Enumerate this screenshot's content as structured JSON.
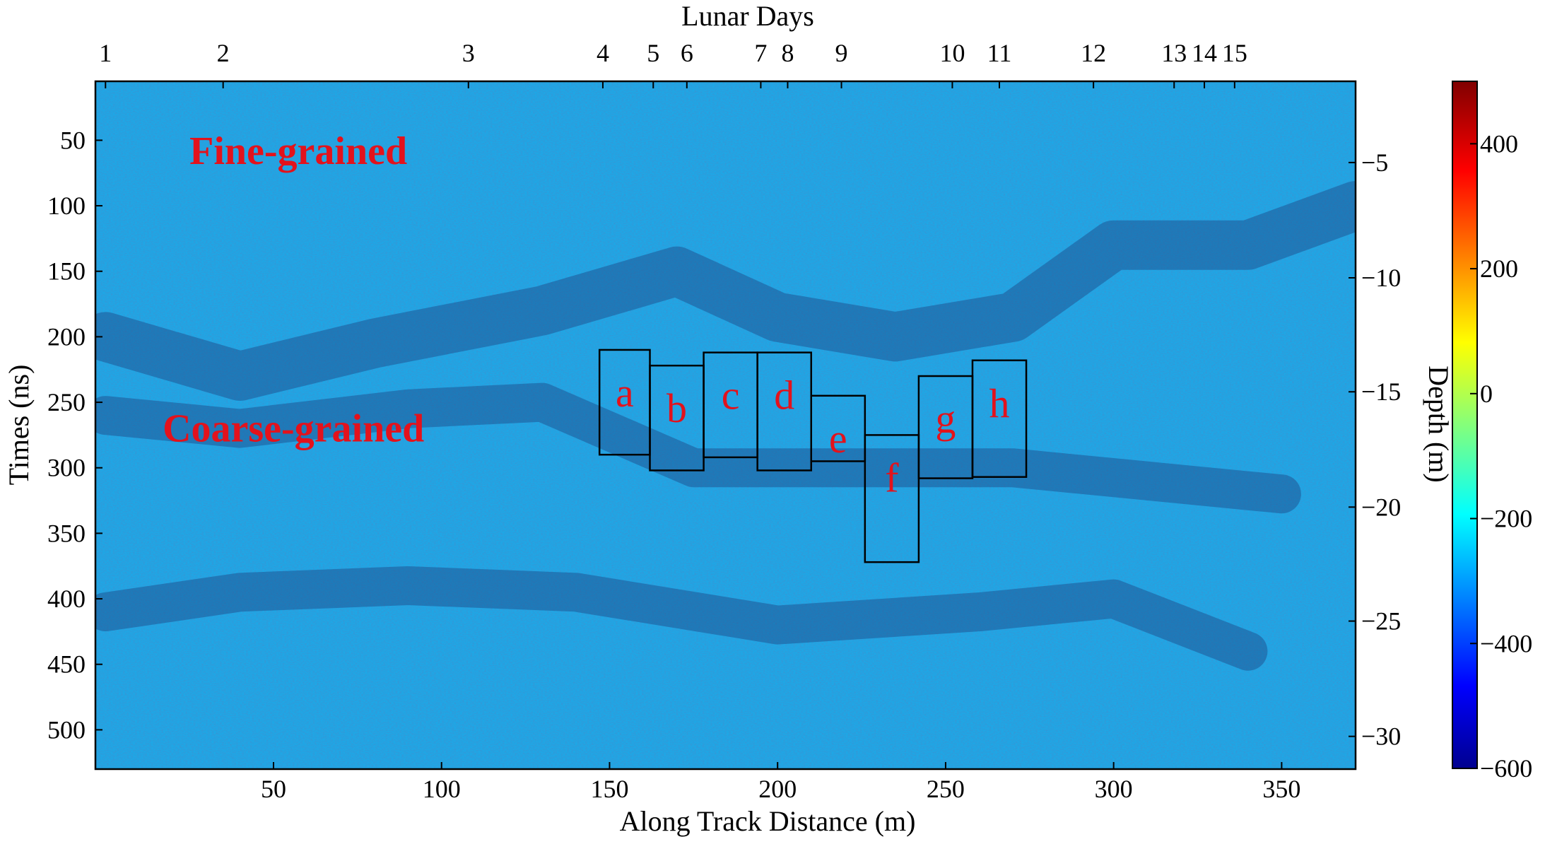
{
  "chart_data": {
    "type": "heatmap",
    "top_axis": {
      "title": "Lunar Days",
      "ticks": [
        {
          "label": "1",
          "x": 0
        },
        {
          "label": "2",
          "x": 35
        },
        {
          "label": "3",
          "x": 108
        },
        {
          "label": "4",
          "x": 148
        },
        {
          "label": "5",
          "x": 163
        },
        {
          "label": "6",
          "x": 173
        },
        {
          "label": "7",
          "x": 195
        },
        {
          "label": "8",
          "x": 203
        },
        {
          "label": "9",
          "x": 219
        },
        {
          "label": "10",
          "x": 252
        },
        {
          "label": "11",
          "x": 266
        },
        {
          "label": "12",
          "x": 294
        },
        {
          "label": "13",
          "x": 318
        },
        {
          "label": "14",
          "x": 327
        },
        {
          "label": "15",
          "x": 336
        }
      ]
    },
    "xlabel": "Along Track Distance (m)",
    "xlim": [
      -3,
      372
    ],
    "xticks": [
      50,
      100,
      150,
      200,
      250,
      300,
      350
    ],
    "ylabel": "Times (ns)",
    "ylim": [
      530,
      5
    ],
    "yticks": [
      50,
      100,
      150,
      200,
      250,
      300,
      350,
      400,
      450,
      500
    ],
    "right_axis": {
      "label": "Depth (m)",
      "ticks": [
        {
          "label": "−5",
          "t": 67
        },
        {
          "label": "−10",
          "t": 155
        },
        {
          "label": "−15",
          "t": 242
        },
        {
          "label": "−20",
          "t": 330
        },
        {
          "label": "−25",
          "t": 417
        },
        {
          "label": "−30",
          "t": 505
        }
      ]
    },
    "colorbar": {
      "range": [
        -600,
        500
      ],
      "ticks": [
        400,
        200,
        0,
        -200,
        -400,
        -600
      ],
      "tick_labels": [
        "400",
        "200",
        "0",
        "−200",
        "−400",
        "−600"
      ]
    },
    "annotations": [
      {
        "text": "Fine-grained",
        "x": 25,
        "t": 68
      },
      {
        "text": "Coarse-grained",
        "x": 17,
        "t": 280
      }
    ],
    "boxes": [
      {
        "label": "a",
        "x0": 147,
        "x1": 162,
        "t0": 210,
        "t1": 290
      },
      {
        "label": "b",
        "x0": 162,
        "x1": 178,
        "t0": 222,
        "t1": 302
      },
      {
        "label": "c",
        "x0": 178,
        "x1": 194,
        "t0": 212,
        "t1": 292
      },
      {
        "label": "d",
        "x0": 194,
        "x1": 210,
        "t0": 212,
        "t1": 302
      },
      {
        "label": "e",
        "x0": 210,
        "x1": 226,
        "t0": 245,
        "t1": 295
      },
      {
        "label": "f",
        "x0": 226,
        "x1": 242,
        "t0": 275,
        "t1": 372
      },
      {
        "label": "g",
        "x0": 242,
        "x1": 258,
        "t0": 230,
        "t1": 308
      },
      {
        "label": "h",
        "x0": 258,
        "x1": 274,
        "t0": 218,
        "t1": 307
      }
    ]
  },
  "colors": {
    "background_field": "#1ea7e6",
    "annotation": "#e3121c",
    "box_stroke": "#000000"
  }
}
